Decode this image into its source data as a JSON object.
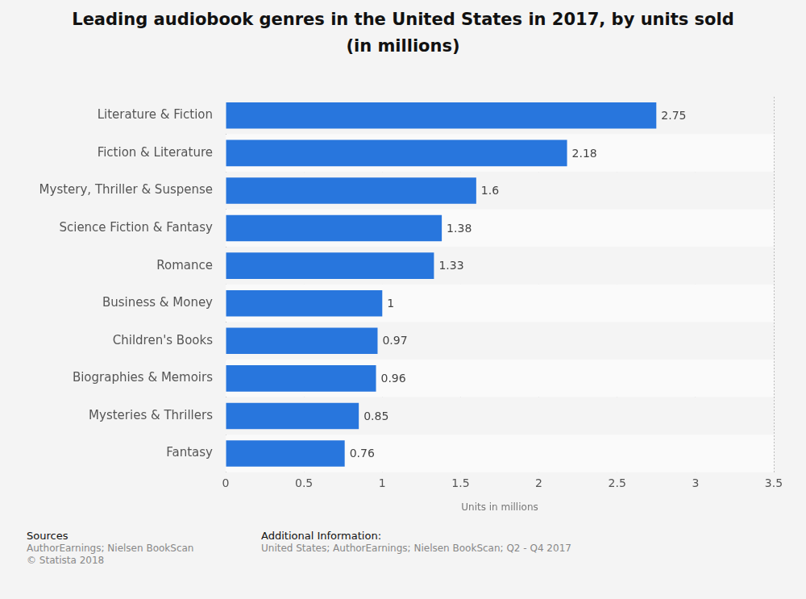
{
  "chart_data": {
    "type": "bar",
    "title": "Leading audiobook genres in the United States in 2017, by units sold (in millions)",
    "x_label": "Units in millions",
    "categories": [
      "Literature & Fiction",
      "Fiction & Literature",
      "Mystery, Thriller & Suspense",
      "Science Fiction & Fantasy",
      "Romance",
      "Business & Money",
      "Children's Books",
      "Biographies & Memoirs",
      "Mysteries & Thrillers",
      "Fantasy"
    ],
    "values": [
      2.75,
      2.18,
      1.6,
      1.38,
      1.33,
      1,
      0.97,
      0.96,
      0.85,
      0.76
    ],
    "color": "#2876dd",
    "orientation": "horizontal",
    "xlim": [
      0,
      3.5
    ],
    "xticks": [
      0,
      0.5,
      1,
      1.5,
      2,
      2.5,
      3,
      3.5
    ],
    "grid": true,
    "data_labels": true,
    "footer": {
      "sources_heading": "Sources",
      "sources": [
        "AuthorEarnings; Nielsen BookScan",
        "© Statista 2018"
      ],
      "info_heading": "Additional Information:",
      "info": [
        "United States; AuthorEarnings; Nielsen BookScan; Q2 - Q4 2017"
      ]
    }
  }
}
